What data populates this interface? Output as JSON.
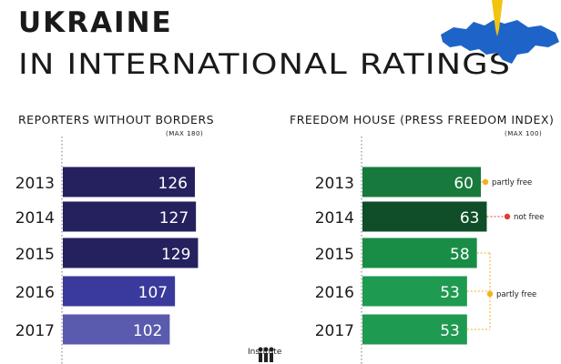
{
  "title_line1": "UKRAINE",
  "title_line2": "IN INTERNATIONAL RATINGS",
  "logo_text": "Institute",
  "colors": {
    "map_blue": "#1e64c8",
    "pin_yellow": "#f1c40f",
    "free_dot": "#f5b11c",
    "notfree_dot": "#e53935"
  },
  "chart_data": [
    {
      "type": "bar",
      "orientation": "horizontal",
      "title": "REPORTERS WITHOUT BORDERS",
      "subtitle": "(MAX 180)",
      "categories": [
        "2013",
        "2014",
        "2015",
        "2016",
        "2017"
      ],
      "values": [
        126,
        127,
        129,
        107,
        102
      ],
      "bar_colors": [
        "#25215f",
        "#25215f",
        "#25215f",
        "#3a3a9c",
        "#5a5aae"
      ],
      "xlim": [
        0,
        180
      ]
    },
    {
      "type": "bar",
      "orientation": "horizontal",
      "title": "FREEDOM HOUSE (PRESS FREEDOM INDEX)",
      "subtitle": "(MAX 100)",
      "categories": [
        "2013",
        "2014",
        "2015",
        "2016",
        "2017"
      ],
      "values": [
        60,
        63,
        58,
        53,
        53
      ],
      "bar_colors": [
        "#177a3c",
        "#0f4e28",
        "#198d46",
        "#1f9a51",
        "#1f9a51"
      ],
      "xlim": [
        0,
        100
      ],
      "annotations": [
        "partly free",
        "not free",
        "partly free"
      ]
    }
  ]
}
